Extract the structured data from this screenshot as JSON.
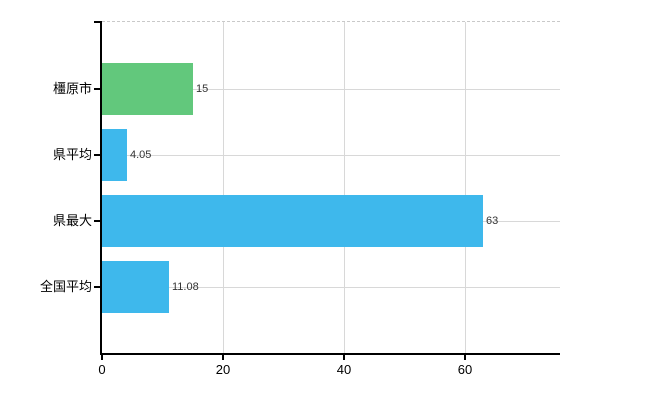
{
  "chart_data": {
    "type": "bar",
    "orientation": "horizontal",
    "categories": [
      "橿原市",
      "県平均",
      "県最大",
      "全国平均"
    ],
    "values": [
      15,
      4.05,
      63,
      11.08
    ],
    "value_labels": [
      "15",
      "4.05",
      "63",
      "11.08"
    ],
    "bar_colors": [
      "#62c87c",
      "#3eb8ec",
      "#3eb8ec",
      "#3eb8ec"
    ],
    "x_ticks": [
      "0",
      "20",
      "40",
      "60"
    ],
    "x_tick_values": [
      0,
      20,
      40,
      60
    ],
    "v_gridline_values": [
      20,
      40,
      60
    ],
    "xlim": [
      0,
      75.7
    ],
    "grid": true,
    "legend_position": "none",
    "title": ""
  },
  "colors": {
    "axis": "#000000",
    "gridline": "#d8d8d8",
    "plot_top_border": "#c9c9c9",
    "value_label_text": "#333333",
    "category_label_text": "#000000",
    "tick_label_text": "#000000",
    "background": "#ffffff"
  }
}
